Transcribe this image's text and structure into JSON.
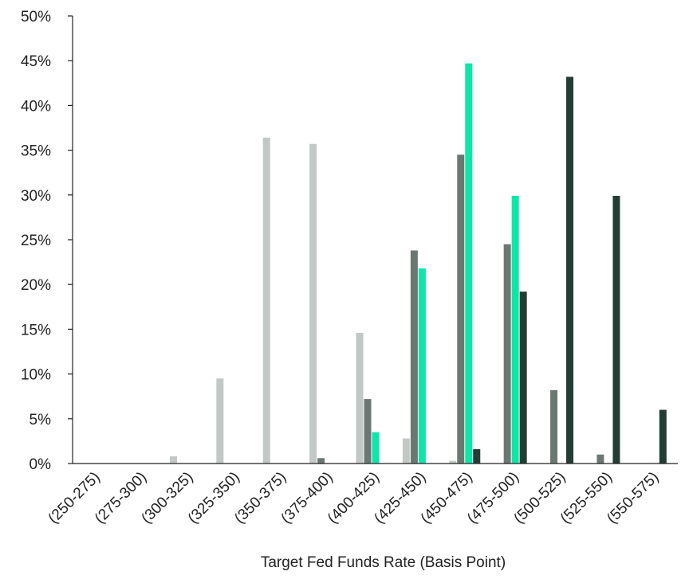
{
  "chart_data": {
    "type": "bar",
    "xlabel": "Target Fed Funds Rate (Basis Point)",
    "ylabel": "",
    "ylim": [
      0,
      50
    ],
    "yticks": [
      "0%",
      "5%",
      "10%",
      "15%",
      "20%",
      "25%",
      "30%",
      "35%",
      "40%",
      "45%",
      "50%"
    ],
    "ytick_values": [
      0,
      5,
      10,
      15,
      20,
      25,
      30,
      35,
      40,
      45,
      50
    ],
    "grid": false,
    "legend": "none",
    "categories": [
      "(250-275)",
      "(275-300)",
      "(300-325)",
      "(325-350)",
      "(350-375)",
      "(375-400)",
      "(400-425)",
      "(425-450)",
      "(450-475)",
      "(475-500)",
      "(500-525)",
      "(525-550)",
      "(550-575)"
    ],
    "series": [
      {
        "color": "#c2c8c5",
        "values": [
          0,
          0,
          0.8,
          9.5,
          36.4,
          35.7,
          14.6,
          2.8,
          0.3,
          0,
          0,
          0,
          0
        ]
      },
      {
        "color": "#6b7872",
        "values": [
          0,
          0,
          0,
          0,
          0,
          0.6,
          7.2,
          23.8,
          34.5,
          24.5,
          8.2,
          1.0,
          0
        ]
      },
      {
        "color": "#0ee6a8",
        "values": [
          0,
          0,
          0,
          0,
          0,
          0,
          3.5,
          21.8,
          44.7,
          29.9,
          0,
          0,
          0
        ]
      },
      {
        "color": "#233d35",
        "values": [
          0,
          0,
          0,
          0,
          0,
          0,
          0,
          0,
          1.6,
          19.2,
          43.2,
          29.9,
          6.0
        ]
      }
    ]
  }
}
